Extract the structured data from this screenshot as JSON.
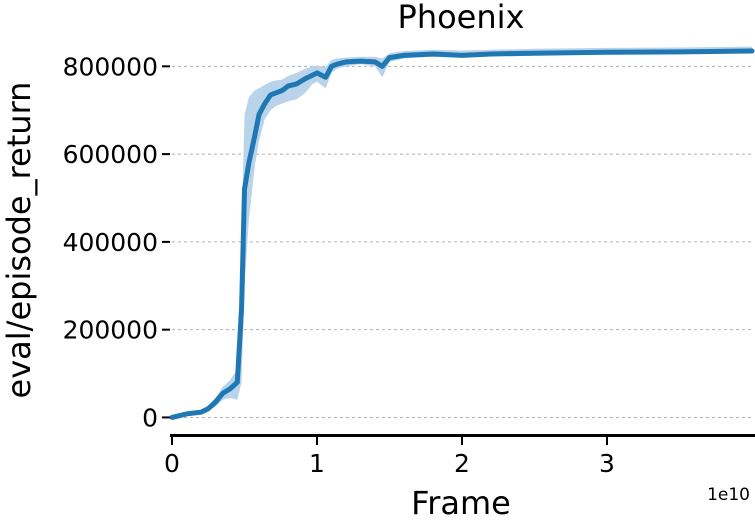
{
  "chart_data": {
    "type": "line",
    "title": "Phoenix",
    "xlabel": "Frame",
    "ylabel": "eval/episode_return",
    "x_offset_label": "1e10",
    "xlim": [
      0,
      4.0
    ],
    "ylim": [
      -40000,
      860000
    ],
    "x_ticks": [
      {
        "value": 0,
        "label": "0"
      },
      {
        "value": 1,
        "label": "1"
      },
      {
        "value": 2,
        "label": "2"
      },
      {
        "value": 3,
        "label": "3"
      }
    ],
    "y_ticks": [
      {
        "value": 0,
        "label": "0"
      },
      {
        "value": 200000,
        "label": "200000"
      },
      {
        "value": 400000,
        "label": "400000"
      },
      {
        "value": 600000,
        "label": "600000"
      },
      {
        "value": 800000,
        "label": "800000"
      }
    ],
    "grid": "y-dashed",
    "series": [
      {
        "color": "#1f77b4",
        "band_color": "#b9d4ea",
        "x": [
          0.0,
          0.1,
          0.2,
          0.25,
          0.3,
          0.35,
          0.4,
          0.45,
          0.48,
          0.5,
          0.53,
          0.57,
          0.6,
          0.64,
          0.68,
          0.72,
          0.76,
          0.8,
          0.86,
          0.92,
          0.97,
          1.0,
          1.06,
          1.1,
          1.14,
          1.2,
          1.3,
          1.4,
          1.45,
          1.5,
          1.6,
          1.8,
          2.0,
          2.2,
          2.5,
          3.0,
          3.5,
          4.0
        ],
        "y": [
          0,
          8000,
          12000,
          20000,
          35000,
          55000,
          65000,
          80000,
          250000,
          520000,
          580000,
          640000,
          690000,
          715000,
          735000,
          740000,
          745000,
          755000,
          760000,
          772000,
          780000,
          785000,
          775000,
          800000,
          805000,
          810000,
          812000,
          810000,
          800000,
          820000,
          825000,
          828000,
          825000,
          828000,
          830000,
          832000,
          833000,
          835000
        ],
        "y_low": [
          -3000,
          4000,
          8000,
          15000,
          25000,
          40000,
          45000,
          40000,
          80000,
          300000,
          450000,
          570000,
          630000,
          680000,
          700000,
          710000,
          715000,
          720000,
          725000,
          740000,
          760000,
          765000,
          750000,
          785000,
          795000,
          800000,
          805000,
          800000,
          775000,
          810000,
          818000,
          822000,
          820000,
          823000,
          825000,
          827000,
          828000,
          830000
        ],
        "y_high": [
          5000,
          12000,
          18000,
          28000,
          45000,
          70000,
          85000,
          110000,
          420000,
          690000,
          730000,
          745000,
          750000,
          758000,
          765000,
          768000,
          770000,
          778000,
          785000,
          795000,
          800000,
          802000,
          798000,
          815000,
          818000,
          820000,
          822000,
          822000,
          818000,
          830000,
          835000,
          838000,
          836000,
          838000,
          840000,
          842000,
          843000,
          845000
        ]
      }
    ]
  }
}
